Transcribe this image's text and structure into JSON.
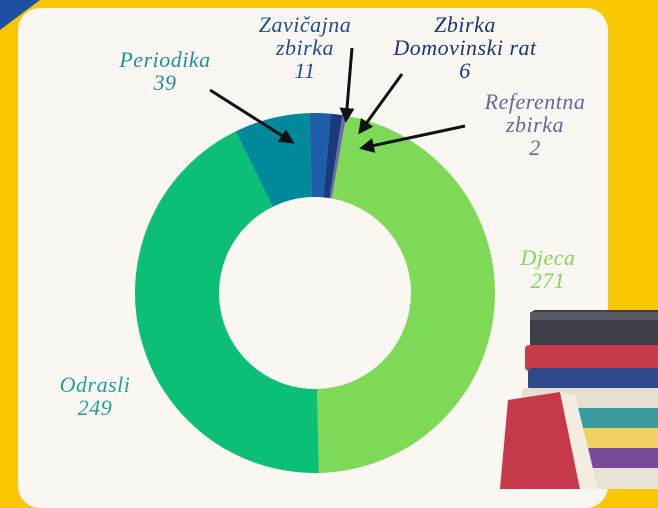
{
  "chart_data": {
    "type": "donut",
    "categories": [
      "Djeca",
      "Odrasli",
      "Periodika",
      "Zavičajna zbirka",
      "Zbirka Domovinski rat",
      "Referentna zbirka"
    ],
    "values": [
      271,
      249,
      39,
      11,
      6,
      2
    ],
    "colors": [
      "#7ed957",
      "#0cbf76",
      "#00899a",
      "#1c5ea8",
      "#1a3a7e",
      "#6f6aa6"
    ],
    "label_colors": [
      "#7ed957",
      "#1fa39a",
      "#1f8fa0",
      "#1e4e8f",
      "#1a3775",
      "#6a6596"
    ]
  }
}
